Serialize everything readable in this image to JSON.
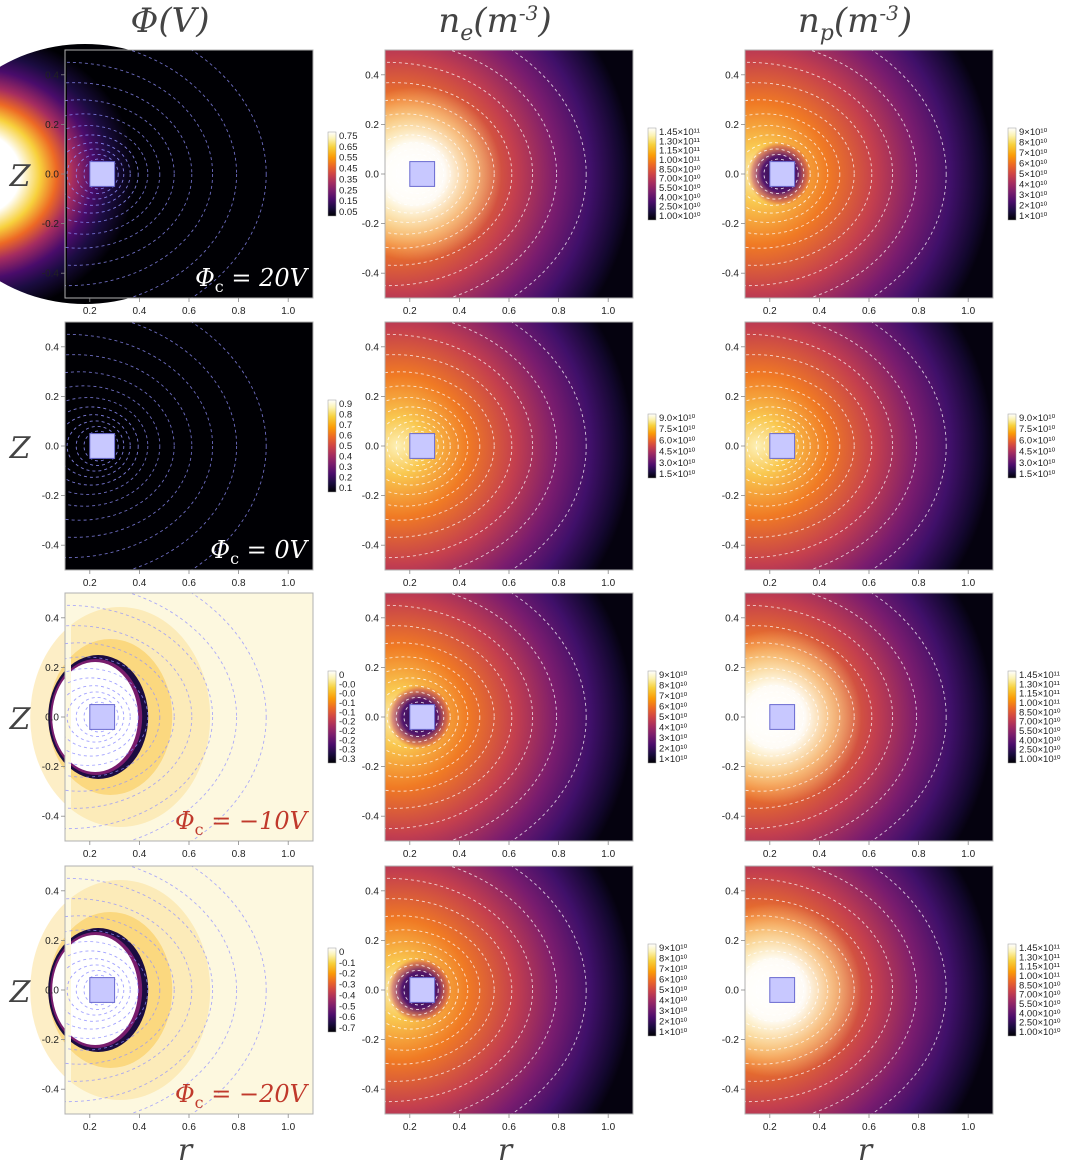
{
  "colors": {
    "inferno": [
      "#000004",
      "#1b0c41",
      "#4a0c6b",
      "#781c6d",
      "#a52c60",
      "#cf4446",
      "#ed6925",
      "#fb9b06",
      "#f7d13d",
      "#fcffa4",
      "#ffffff"
    ],
    "potential_high": "#fdf8df",
    "probe": "#c8c8ff",
    "probe_edge": "#6a6ad0",
    "contour_blue": "#9090ff",
    "contour_white": "#ffffff",
    "label_white": "#ffffff",
    "label_red": "#c0392b"
  },
  "chart_data": {
    "type": "heatmap",
    "columns": [
      "Φ(V)",
      "n_e(m^-3)",
      "n_p(m^-3)"
    ],
    "row_label": "Z",
    "col_label": "r",
    "x_ticks": [
      "0.2",
      "0.4",
      "0.6",
      "0.8",
      "1.0"
    ],
    "y_ticks": [
      "0.4",
      "0.2",
      "0.0",
      "-0.2",
      "-0.4"
    ],
    "xlim": [
      0.1,
      1.1
    ],
    "ylim": [
      -0.5,
      0.5
    ],
    "rows": [
      {
        "label": "Φ_c = 20V",
        "panels": [
          {
            "kind": "potential",
            "mode": "positive",
            "colorbar": [
              "0.75",
              "0.65",
              "0.55",
              "0.45",
              "0.35",
              "0.25",
              "0.15",
              "0.05"
            ]
          },
          {
            "kind": "density",
            "mode": "bright_core",
            "colorbar": [
              "1.45×10¹¹",
              "1.30×10¹¹",
              "1.15×10¹¹",
              "1.00×10¹¹",
              "8.50×10¹⁰",
              "7.00×10¹⁰",
              "5.50×10¹⁰",
              "4.00×10¹⁰",
              "2.50×10¹⁰",
              "1.00×10¹⁰"
            ]
          },
          {
            "kind": "density",
            "mode": "dark_core",
            "colorbar": [
              "9×10¹⁰",
              "8×10¹⁰",
              "7×10¹⁰",
              "6×10¹⁰",
              "5×10¹⁰",
              "4×10¹⁰",
              "3×10¹⁰",
              "2×10¹⁰",
              "1×10¹⁰"
            ]
          }
        ]
      },
      {
        "label": "Φ_c = 0V",
        "panels": [
          {
            "kind": "potential",
            "mode": "zero",
            "colorbar": [
              "0.9",
              "0.8",
              "0.7",
              "0.6",
              "0.5",
              "0.4",
              "0.3",
              "0.2",
              "0.1"
            ]
          },
          {
            "kind": "density",
            "mode": "normal",
            "colorbar": [
              "9.0×10¹⁰",
              "7.5×10¹⁰",
              "6.0×10¹⁰",
              "4.5×10¹⁰",
              "3.0×10¹⁰",
              "1.5×10¹⁰"
            ]
          },
          {
            "kind": "density",
            "mode": "normal",
            "colorbar": [
              "9.0×10¹⁰",
              "7.5×10¹⁰",
              "6.0×10¹⁰",
              "4.5×10¹⁰",
              "3.0×10¹⁰",
              "1.5×10¹⁰"
            ]
          }
        ]
      },
      {
        "label": "Φ_c = −10V",
        "panels": [
          {
            "kind": "potential",
            "mode": "negative",
            "colorbar": [
              "0",
              "-0.0",
              "-0.0",
              "-0.1",
              "-0.1",
              "-0.2",
              "-0.2",
              "-0.2",
              "-0.3",
              "-0.3"
            ]
          },
          {
            "kind": "density",
            "mode": "dark_core",
            "colorbar": [
              "9×10¹⁰",
              "8×10¹⁰",
              "7×10¹⁰",
              "6×10¹⁰",
              "5×10¹⁰",
              "4×10¹⁰",
              "3×10¹⁰",
              "2×10¹⁰",
              "1×10¹⁰"
            ]
          },
          {
            "kind": "density",
            "mode": "bright_core",
            "colorbar": [
              "1.45×10¹¹",
              "1.30×10¹¹",
              "1.15×10¹¹",
              "1.00×10¹¹",
              "8.50×10¹⁰",
              "7.00×10¹⁰",
              "5.50×10¹⁰",
              "4.00×10¹⁰",
              "2.50×10¹⁰",
              "1.00×10¹⁰"
            ]
          }
        ]
      },
      {
        "label": "Φ_c = −20V",
        "panels": [
          {
            "kind": "potential",
            "mode": "negative",
            "colorbar": [
              "0",
              "-0.1",
              "-0.2",
              "-0.3",
              "-0.4",
              "-0.5",
              "-0.6",
              "-0.7"
            ]
          },
          {
            "kind": "density",
            "mode": "dark_core",
            "colorbar": [
              "9×10¹⁰",
              "8×10¹⁰",
              "7×10¹⁰",
              "6×10¹⁰",
              "5×10¹⁰",
              "4×10¹⁰",
              "3×10¹⁰",
              "2×10¹⁰",
              "1×10¹⁰"
            ]
          },
          {
            "kind": "density",
            "mode": "bright_core",
            "colorbar": [
              "1.45×10¹¹",
              "1.30×10¹¹",
              "1.15×10¹¹",
              "1.00×10¹¹",
              "8.50×10¹⁰",
              "7.00×10¹⁰",
              "5.50×10¹⁰",
              "4.00×10¹⁰",
              "2.50×10¹⁰",
              "1.00×10¹⁰"
            ]
          }
        ]
      }
    ]
  }
}
